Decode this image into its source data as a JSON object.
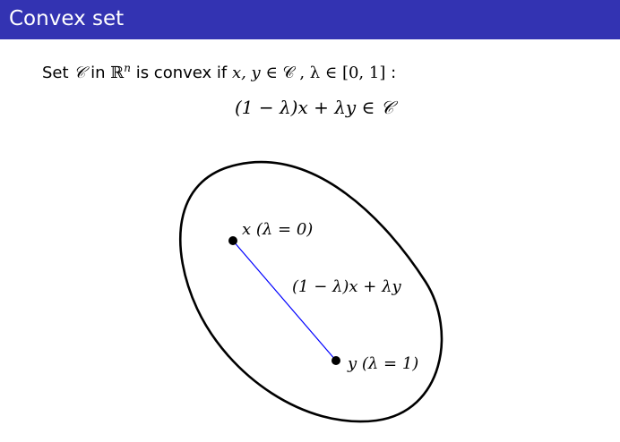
{
  "slide": {
    "title": "Convex set"
  },
  "definition": {
    "prefix": "Set ",
    "set_symbol": "𝒞",
    "in_word": " in ",
    "space_symbol": "ℝ",
    "space_exp": "n",
    "middle": " is convex if ",
    "vars": "x, y",
    "member1": " ∈ 𝒞 ,  ",
    "lambda_cond": "λ ∈ [0, 1]",
    "suffix": " :"
  },
  "formula": {
    "text": "(1 − λ)x + λy  ∈ 𝒞"
  },
  "diagram": {
    "point_x_label": "x  (λ = 0)",
    "point_y_label": "y  (λ = 1)",
    "segment_label": "(1 − λ)x + λy",
    "segment_color": "#0000ff",
    "outline_color": "#000000"
  }
}
